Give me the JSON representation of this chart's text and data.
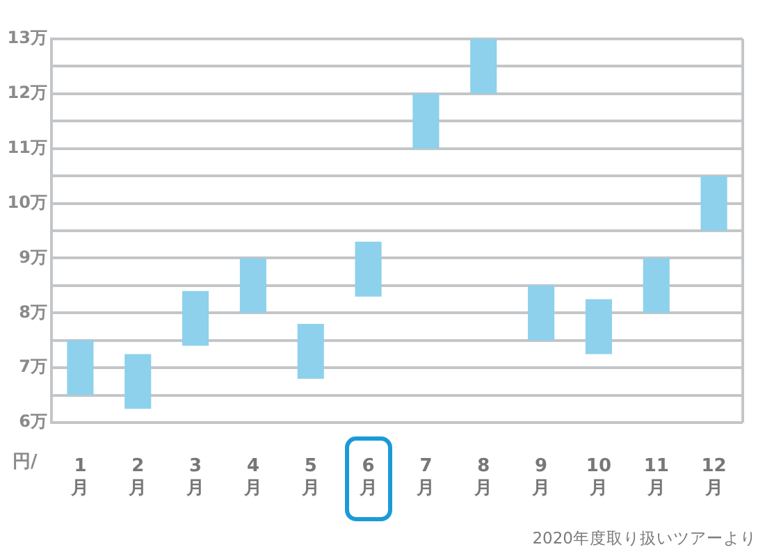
{
  "chart_data": {
    "type": "bar",
    "categories": [
      "1月",
      "2月",
      "3月",
      "4月",
      "5月",
      "6月",
      "7月",
      "8月",
      "9月",
      "10月",
      "11月",
      "12月"
    ],
    "base": [
      6.5,
      6.25,
      7.4,
      8,
      6.8,
      8.3,
      11,
      12,
      7.5,
      7.25,
      8,
      9.5
    ],
    "values": [
      1,
      1,
      1,
      1,
      1,
      1,
      1,
      1,
      1,
      1,
      1,
      1
    ],
    "color": "#8dd1ec",
    "ylabel": "円/",
    "ylim": [
      6,
      13
    ],
    "yticks": [
      {
        "value": 6,
        "label": "6万"
      },
      {
        "value": 6.5,
        "label": null
      },
      {
        "value": 7,
        "label": "7万"
      },
      {
        "value": 7.5,
        "label": null
      },
      {
        "value": 8,
        "label": "8万"
      },
      {
        "value": 8.5,
        "label": null
      },
      {
        "value": 9,
        "label": "9万"
      },
      {
        "value": 9.5,
        "label": null
      },
      {
        "value": 10,
        "label": "10万"
      },
      {
        "value": 10.5,
        "label": null
      },
      {
        "value": 11,
        "label": "11万"
      },
      {
        "value": 11.5,
        "label": null
      },
      {
        "value": 12,
        "label": "12万"
      },
      {
        "value": 12.5,
        "label": null
      },
      {
        "value": 13,
        "label": "13万"
      }
    ],
    "grid": "y",
    "annotations": [
      "2020年度取り扱いツアーより"
    ]
  }
}
